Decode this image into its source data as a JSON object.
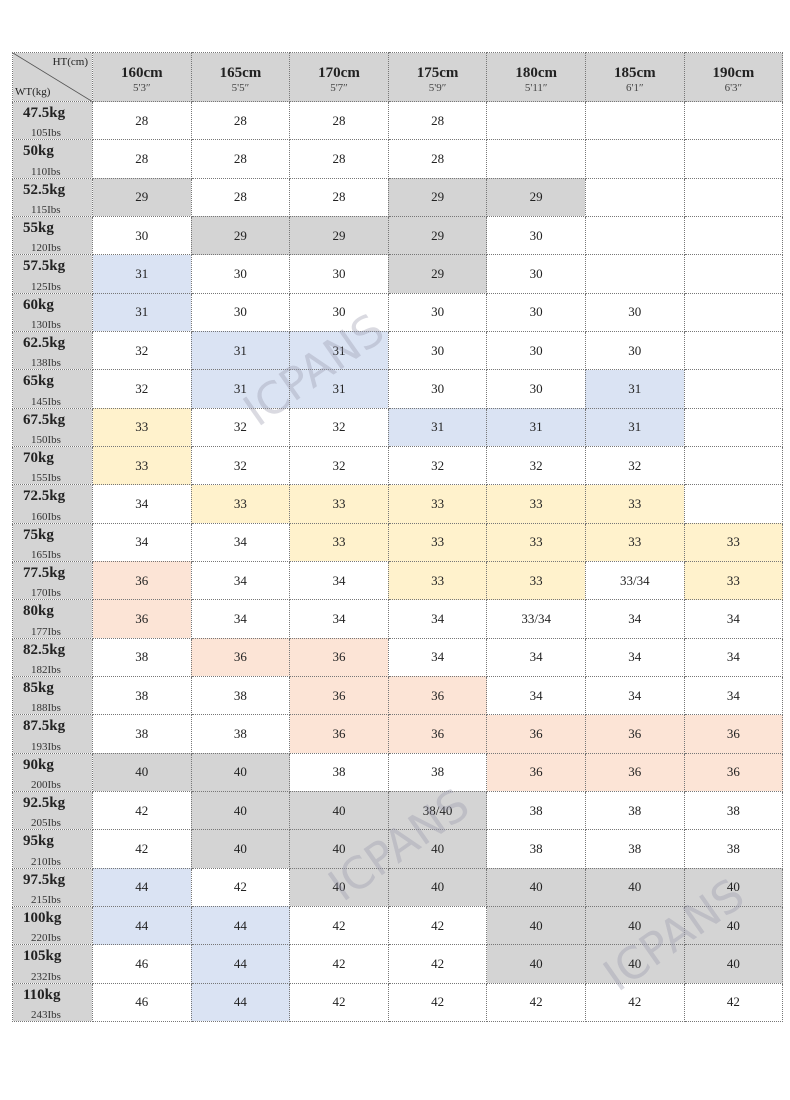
{
  "header": {
    "ht": "HT(cm)",
    "wt": "WT(kg)"
  },
  "columns": [
    {
      "cm": "160cm",
      "ft": "5'3″"
    },
    {
      "cm": "165cm",
      "ft": "5'5″"
    },
    {
      "cm": "170cm",
      "ft": "5'7″"
    },
    {
      "cm": "175cm",
      "ft": "5'9″"
    },
    {
      "cm": "180cm",
      "ft": "5'11″"
    },
    {
      "cm": "185cm",
      "ft": "6'1″"
    },
    {
      "cm": "190cm",
      "ft": "6'3″"
    }
  ],
  "rows": [
    {
      "kg": "47.5kg",
      "lbs": "105Ibs",
      "sizes": [
        28,
        28,
        28,
        28,
        null,
        null,
        null
      ]
    },
    {
      "kg": "50kg",
      "lbs": "110Ibs",
      "sizes": [
        28,
        28,
        28,
        28,
        null,
        null,
        null
      ]
    },
    {
      "kg": "52.5kg",
      "lbs": "115Ibs",
      "sizes": [
        29,
        28,
        28,
        29,
        29,
        null,
        null
      ]
    },
    {
      "kg": "55kg",
      "lbs": "120Ibs",
      "sizes": [
        30,
        29,
        29,
        29,
        30,
        null,
        null
      ]
    },
    {
      "kg": "57.5kg",
      "lbs": "125Ibs",
      "sizes": [
        31,
        30,
        30,
        29,
        30,
        null,
        null
      ]
    },
    {
      "kg": "60kg",
      "lbs": "130Ibs",
      "sizes": [
        31,
        30,
        30,
        30,
        30,
        30,
        null
      ]
    },
    {
      "kg": "62.5kg",
      "lbs": "138Ibs",
      "sizes": [
        32,
        31,
        31,
        30,
        30,
        30,
        null
      ]
    },
    {
      "kg": "65kg",
      "lbs": "145Ibs",
      "sizes": [
        32,
        31,
        31,
        30,
        30,
        31,
        null
      ]
    },
    {
      "kg": "67.5kg",
      "lbs": "150Ibs",
      "sizes": [
        33,
        32,
        32,
        31,
        31,
        31,
        null
      ]
    },
    {
      "kg": "70kg",
      "lbs": "155Ibs",
      "sizes": [
        33,
        32,
        32,
        32,
        32,
        32,
        null
      ]
    },
    {
      "kg": "72.5kg",
      "lbs": "160Ibs",
      "sizes": [
        34,
        33,
        33,
        33,
        33,
        33,
        null
      ]
    },
    {
      "kg": "75kg",
      "lbs": "165Ibs",
      "sizes": [
        34,
        34,
        33,
        33,
        33,
        33,
        33
      ]
    },
    {
      "kg": "77.5kg",
      "lbs": "170Ibs",
      "sizes": [
        36,
        34,
        34,
        33,
        33,
        "33/34",
        33
      ]
    },
    {
      "kg": "80kg",
      "lbs": "177Ibs",
      "sizes": [
        36,
        34,
        34,
        34,
        "33/34",
        34,
        34
      ]
    },
    {
      "kg": "82.5kg",
      "lbs": "182Ibs",
      "sizes": [
        38,
        36,
        36,
        34,
        34,
        34,
        34
      ]
    },
    {
      "kg": "85kg",
      "lbs": "188Ibs",
      "sizes": [
        38,
        38,
        36,
        36,
        34,
        34,
        34
      ]
    },
    {
      "kg": "87.5kg",
      "lbs": "193Ibs",
      "sizes": [
        38,
        38,
        36,
        36,
        36,
        36,
        36
      ]
    },
    {
      "kg": "90kg",
      "lbs": "200Ibs",
      "sizes": [
        40,
        40,
        38,
        38,
        36,
        36,
        36
      ]
    },
    {
      "kg": "92.5kg",
      "lbs": "205Ibs",
      "sizes": [
        42,
        40,
        40,
        "38/40",
        38,
        38,
        38
      ]
    },
    {
      "kg": "95kg",
      "lbs": "210Ibs",
      "sizes": [
        42,
        40,
        40,
        40,
        38,
        38,
        38
      ]
    },
    {
      "kg": "97.5kg",
      "lbs": "215Ibs",
      "sizes": [
        44,
        42,
        40,
        40,
        40,
        40,
        40
      ]
    },
    {
      "kg": "100kg",
      "lbs": "220Ibs",
      "sizes": [
        44,
        44,
        42,
        42,
        40,
        40,
        40
      ]
    },
    {
      "kg": "105kg",
      "lbs": "232Ibs",
      "sizes": [
        46,
        44,
        42,
        42,
        40,
        40,
        40
      ]
    },
    {
      "kg": "110kg",
      "lbs": "243Ibs",
      "sizes": [
        46,
        44,
        42,
        42,
        42,
        42,
        42
      ]
    }
  ],
  "watermark": "ICPANS"
}
